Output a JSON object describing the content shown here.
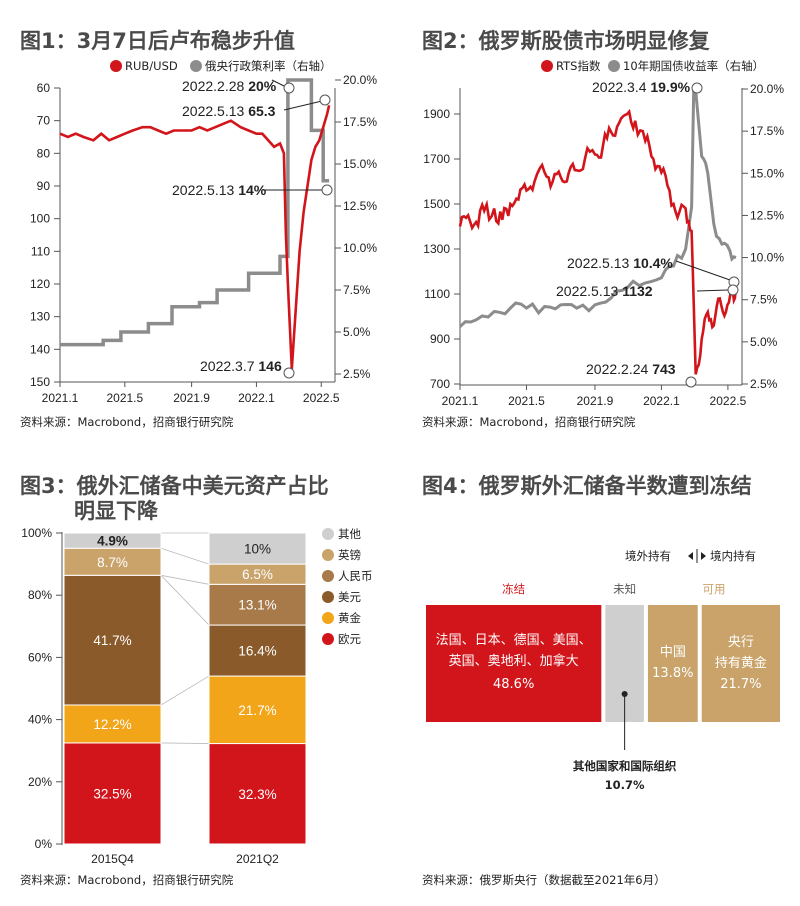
{
  "colors": {
    "red": "#d2151b",
    "gray": "#8c8c8c",
    "lightgray": "#cfcfcf",
    "brown": "#8b5a2b",
    "midbrown": "#a87a4a",
    "tan": "#c9a36a",
    "orange": "#f3a51a",
    "title": "#4a4a4a"
  },
  "chart_data": [
    {
      "id": "fig1",
      "type": "line",
      "title": "图1：3月7日后卢布稳步升值",
      "source": "资料来源：Macrobond，招商银行研究院",
      "legend": [
        "RUB/USD",
        "俄央行政策利率（右轴）"
      ],
      "x_ticks": [
        "2021.1",
        "2021.5",
        "2021.9",
        "2022.1",
        "2022.5"
      ],
      "y_left": {
        "ticks": [
          60,
          70,
          80,
          90,
          100,
          110,
          120,
          130,
          140,
          150
        ],
        "range": [
          60,
          150
        ],
        "inverted": true
      },
      "y_right": {
        "ticks": [
          "20.0%",
          "17.5%",
          "15.0%",
          "12.5%",
          "10.0%",
          "7.5%",
          "5.0%",
          "2.5%"
        ],
        "range": [
          2.5,
          20
        ]
      },
      "series": [
        {
          "name": "RUB/USD",
          "axis": "left",
          "t": [
            2021.0,
            2021.04,
            2021.08,
            2021.12,
            2021.17,
            2021.21,
            2021.25,
            2021.29,
            2021.33,
            2021.37,
            2021.42,
            2021.46,
            2021.5,
            2021.54,
            2021.58,
            2021.62,
            2021.67,
            2021.71,
            2021.75,
            2021.79,
            2021.83,
            2021.87,
            2021.92,
            2021.96,
            2022.0,
            2022.03,
            2022.06,
            2022.09,
            2022.12,
            2022.14,
            2022.15,
            2022.16,
            2022.18,
            2022.2,
            2022.22,
            2022.24,
            2022.26,
            2022.28,
            2022.3,
            2022.32,
            2022.34,
            2022.36,
            2022.37
          ],
          "values": [
            74,
            75,
            74,
            75,
            76,
            74,
            76,
            75,
            74,
            73,
            72,
            72,
            73,
            74,
            73,
            73,
            73,
            72,
            73,
            72,
            71,
            70,
            72,
            73,
            74,
            74,
            76,
            78,
            77,
            80,
            105,
            120,
            146,
            128,
            110,
            98,
            90,
            82,
            78,
            76,
            72,
            68,
            65.3
          ]
        },
        {
          "name": "俄央行政策利率",
          "axis": "right",
          "steps": [
            [
              2021.0,
              4.25
            ],
            [
              2021.22,
              4.5
            ],
            [
              2021.31,
              5.0
            ],
            [
              2021.45,
              5.5
            ],
            [
              2021.57,
              6.5
            ],
            [
              2021.71,
              6.75
            ],
            [
              2021.8,
              7.5
            ],
            [
              2021.96,
              8.5
            ],
            [
              2022.12,
              9.5
            ],
            [
              2022.16,
              20.0
            ],
            [
              2022.28,
              17.0
            ],
            [
              2022.34,
              14.0
            ],
            [
              2022.37,
              14.0
            ]
          ]
        }
      ],
      "annotations": [
        {
          "date": "2022.2.28",
          "value": "20%"
        },
        {
          "date": "2022.5.13",
          "value": "65.3"
        },
        {
          "date": "2022.5.13",
          "value": "14%"
        },
        {
          "date": "2022.3.7",
          "value": "146"
        }
      ]
    },
    {
      "id": "fig2",
      "type": "line",
      "title": "图2：俄罗斯股债市场明显修复",
      "source": "资料来源：Macrobond，招商银行研究院",
      "legend": [
        "RTS指数",
        "10年期国债收益率（右轴）"
      ],
      "x_ticks": [
        "2021.1",
        "2021.5",
        "2021.9",
        "2022.1",
        "2022.5"
      ],
      "y_left": {
        "ticks": [
          700,
          900,
          1100,
          1300,
          1500,
          1700,
          1900
        ],
        "range": [
          700,
          2000
        ]
      },
      "y_right": {
        "ticks": [
          "20.0%",
          "17.5%",
          "15.0%",
          "12.5%",
          "10.0%",
          "7.5%",
          "5.0%",
          "2.5%"
        ],
        "range": [
          2.5,
          20
        ]
      },
      "series": [
        {
          "name": "RTS指数",
          "axis": "left",
          "t": [
            2021.0,
            2021.04,
            2021.08,
            2021.12,
            2021.17,
            2021.21,
            2021.25,
            2021.29,
            2021.33,
            2021.37,
            2021.42,
            2021.46,
            2021.5,
            2021.54,
            2021.58,
            2021.62,
            2021.67,
            2021.71,
            2021.75,
            2021.79,
            2021.83,
            2021.87,
            2021.92,
            2021.96,
            2022.0,
            2022.04,
            2022.08,
            2022.12,
            2022.15,
            2022.17,
            2022.2,
            2022.23,
            2022.26,
            2022.29,
            2022.32,
            2022.35,
            2022.37
          ],
          "values": [
            1400,
            1450,
            1420,
            1470,
            1480,
            1430,
            1500,
            1520,
            1560,
            1600,
            1640,
            1600,
            1620,
            1640,
            1650,
            1700,
            1720,
            1760,
            1820,
            1860,
            1900,
            1870,
            1780,
            1700,
            1640,
            1560,
            1440,
            1480,
            1380,
            743,
            900,
            1020,
            960,
            1080,
            1020,
            1100,
            1132
          ]
        },
        {
          "name": "10年期国债收益率",
          "axis": "right",
          "t": [
            2021.0,
            2021.08,
            2021.17,
            2021.25,
            2021.33,
            2021.42,
            2021.5,
            2021.58,
            2021.67,
            2021.75,
            2021.83,
            2021.92,
            2022.0,
            2022.06,
            2022.12,
            2022.15,
            2022.16,
            2022.17,
            2022.2,
            2022.23,
            2022.26,
            2022.3,
            2022.34,
            2022.37
          ],
          "values": [
            5.9,
            6.3,
            6.8,
            7.0,
            7.0,
            7.1,
            7.2,
            7.0,
            7.2,
            7.6,
            8.2,
            8.5,
            8.8,
            9.5,
            10.5,
            13.0,
            19.9,
            19.9,
            16.0,
            15.0,
            12.0,
            10.8,
            10.4,
            10.0
          ]
        }
      ],
      "annotations": [
        {
          "date": "2022.3.4",
          "value": "19.9%"
        },
        {
          "date": "2022.5.13",
          "value": "10.4%"
        },
        {
          "date": "2022.5.13",
          "value": "1132"
        },
        {
          "date": "2022.2.24",
          "value": "743"
        }
      ]
    },
    {
      "id": "fig3",
      "type": "bar",
      "stacked": true,
      "title_line1": "图3：俄外汇储备中美元资产占比",
      "title_line2": "明显下降",
      "source": "资料来源：Macrobond，招商银行研究院",
      "y_ticks": [
        "100%",
        "80%",
        "60%",
        "40%",
        "20%",
        "0%"
      ],
      "categories": [
        "2015Q4",
        "2021Q2"
      ],
      "series": [
        {
          "name": "欧元",
          "values": [
            32.5,
            32.3
          ],
          "labels": [
            "32.5%",
            "32.3%"
          ]
        },
        {
          "name": "黄金",
          "values": [
            12.2,
            21.7
          ],
          "labels": [
            "12.2%",
            "21.7%"
          ]
        },
        {
          "name": "美元",
          "values": [
            41.7,
            16.4
          ],
          "labels": [
            "41.7%",
            "16.4%"
          ]
        },
        {
          "name": "人民币",
          "values": [
            0.0,
            13.1
          ],
          "labels": [
            "",
            "13.1%"
          ]
        },
        {
          "name": "英镑",
          "values": [
            8.7,
            6.5
          ],
          "labels": [
            "8.7%",
            "6.5%"
          ]
        },
        {
          "name": "其他",
          "values": [
            4.9,
            10.0
          ],
          "labels": [
            "4.9%",
            "10%"
          ]
        }
      ],
      "legend_order": [
        "其他",
        "英镑",
        "人民币",
        "美元",
        "黄金",
        "欧元"
      ]
    },
    {
      "id": "fig4",
      "type": "bar",
      "stacked": true,
      "title": "图4：俄罗斯外汇储备半数遭到冻结",
      "source": "资料来源：俄罗斯央行（数据截至2021年6月）",
      "direction_left": "境外持有",
      "direction_right": "境内持有",
      "group_labels": [
        "冻结",
        "未知",
        "可用"
      ],
      "segments": [
        {
          "name": "法国、日本、德国、美国、英国、奥地利、加拿大",
          "line1": "法国、日本、德国、美国、",
          "line2": "英国、奥地利、加拿大",
          "value": 48.6,
          "label": "48.6%"
        },
        {
          "name": "其他国家和国际组织",
          "value": 10.7,
          "label": "10.7%"
        },
        {
          "name": "中国",
          "value": 13.8,
          "label": "13.8%"
        },
        {
          "name": "央行持有黄金",
          "line1": "央行",
          "line2": "持有黄金",
          "value": 21.7,
          "label": "21.7%"
        }
      ]
    }
  ]
}
